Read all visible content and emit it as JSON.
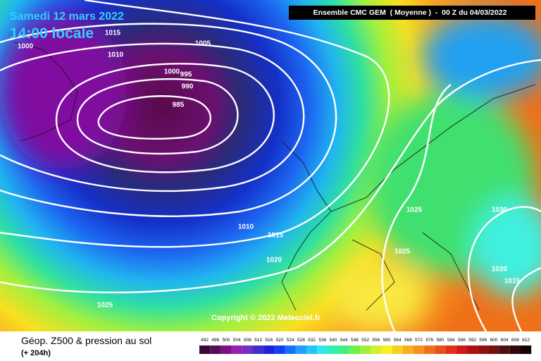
{
  "header": {
    "date": "Samedi 12 mars 2022",
    "time": "14:00 locale",
    "run": "Ensemble CMC GEM  ( Moyenne )  -  00 Z du 04/03/2022"
  },
  "isobar_labels": [
    1015,
    1000,
    1010,
    1005,
    1000,
    995,
    990,
    985,
    1010,
    1015,
    1020,
    1025,
    1025,
    1030,
    1025,
    1020,
    1015
  ],
  "copyright": "Copyright © 2022 Meteociel.fr",
  "footer": {
    "title": "Géop. Z500 & pression au sol",
    "lead": "(+ 204h)"
  },
  "scale": [
    492,
    496,
    500,
    504,
    508,
    512,
    516,
    520,
    524,
    528,
    532,
    536,
    540,
    544,
    548,
    552,
    556,
    560,
    564,
    568,
    572,
    576,
    580,
    584,
    588,
    592,
    596,
    600,
    604,
    608,
    612
  ]
}
